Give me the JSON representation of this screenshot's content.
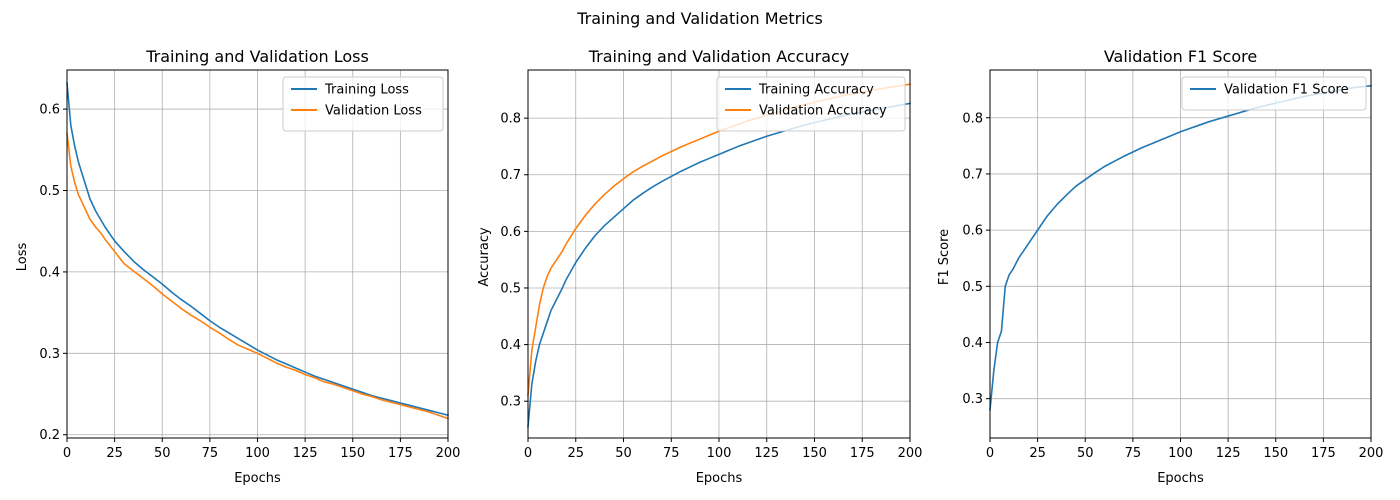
{
  "figure": {
    "suptitle": "Training and Validation Metrics"
  },
  "colors": {
    "training": "#1f77b4",
    "validation": "#ff7f0e"
  },
  "chart_data": [
    {
      "type": "line",
      "title": "Training and Validation Loss",
      "xlabel": "Epochs",
      "ylabel": "Loss",
      "xlim": [
        0,
        200
      ],
      "ylim": [
        0.196,
        0.648
      ],
      "xticks": [
        0,
        25,
        50,
        75,
        100,
        125,
        150,
        175,
        200
      ],
      "yticks": [
        0.2,
        0.3,
        0.4,
        0.5,
        0.6
      ],
      "grid": true,
      "legend": "top-right",
      "series": [
        {
          "name": "Training Loss",
          "color": "#1f77b4",
          "x": [
            0,
            2,
            4,
            6,
            8,
            10,
            12,
            15,
            18,
            20,
            25,
            30,
            35,
            40,
            45,
            50,
            55,
            60,
            65,
            70,
            75,
            80,
            85,
            90,
            95,
            100,
            105,
            110,
            115,
            120,
            125,
            130,
            135,
            140,
            145,
            150,
            155,
            160,
            165,
            170,
            175,
            180,
            185,
            190,
            195,
            200
          ],
          "values": [
            0.632,
            0.58,
            0.555,
            0.535,
            0.52,
            0.505,
            0.49,
            0.475,
            0.463,
            0.455,
            0.438,
            0.425,
            0.413,
            0.403,
            0.394,
            0.385,
            0.375,
            0.366,
            0.358,
            0.349,
            0.34,
            0.332,
            0.325,
            0.318,
            0.311,
            0.304,
            0.298,
            0.292,
            0.287,
            0.282,
            0.277,
            0.272,
            0.268,
            0.264,
            0.26,
            0.256,
            0.252,
            0.248,
            0.245,
            0.242,
            0.239,
            0.236,
            0.233,
            0.23,
            0.227,
            0.224
          ]
        },
        {
          "name": "Validation Loss",
          "color": "#ff7f0e",
          "x": [
            0,
            2,
            4,
            6,
            8,
            10,
            12,
            15,
            18,
            20,
            25,
            30,
            35,
            40,
            45,
            50,
            55,
            60,
            65,
            70,
            75,
            80,
            85,
            90,
            95,
            100,
            105,
            110,
            115,
            120,
            125,
            130,
            135,
            140,
            145,
            150,
            155,
            160,
            165,
            170,
            175,
            180,
            185,
            190,
            195,
            200
          ],
          "values": [
            0.57,
            0.53,
            0.51,
            0.495,
            0.485,
            0.475,
            0.465,
            0.455,
            0.447,
            0.44,
            0.425,
            0.41,
            0.401,
            0.392,
            0.383,
            0.373,
            0.364,
            0.355,
            0.347,
            0.34,
            0.332,
            0.325,
            0.317,
            0.31,
            0.305,
            0.3,
            0.294,
            0.288,
            0.283,
            0.279,
            0.274,
            0.27,
            0.265,
            0.262,
            0.258,
            0.254,
            0.25,
            0.247,
            0.243,
            0.24,
            0.237,
            0.234,
            0.231,
            0.228,
            0.224,
            0.22
          ]
        }
      ]
    },
    {
      "type": "line",
      "title": "Training and Validation Accuracy",
      "xlabel": "Epochs",
      "ylabel": "Accuracy",
      "xlim": [
        0,
        200
      ],
      "ylim": [
        0.235,
        0.885
      ],
      "xticks": [
        0,
        25,
        50,
        75,
        100,
        125,
        150,
        175,
        200
      ],
      "yticks": [
        0.3,
        0.4,
        0.5,
        0.6,
        0.7,
        0.8
      ],
      "grid": true,
      "legend": "top-right",
      "series": [
        {
          "name": "Training Accuracy",
          "color": "#1f77b4",
          "x": [
            0,
            2,
            4,
            6,
            8,
            10,
            12,
            15,
            18,
            20,
            25,
            30,
            35,
            40,
            45,
            50,
            55,
            60,
            65,
            70,
            75,
            80,
            85,
            90,
            95,
            100,
            105,
            110,
            115,
            120,
            125,
            130,
            135,
            140,
            145,
            150,
            155,
            160,
            165,
            170,
            175,
            180,
            185,
            190,
            195,
            200
          ],
          "values": [
            0.255,
            0.33,
            0.37,
            0.4,
            0.42,
            0.44,
            0.46,
            0.48,
            0.5,
            0.515,
            0.545,
            0.57,
            0.592,
            0.61,
            0.625,
            0.64,
            0.655,
            0.667,
            0.678,
            0.688,
            0.697,
            0.706,
            0.714,
            0.722,
            0.729,
            0.736,
            0.743,
            0.75,
            0.756,
            0.762,
            0.768,
            0.773,
            0.778,
            0.783,
            0.788,
            0.792,
            0.796,
            0.8,
            0.804,
            0.808,
            0.811,
            0.814,
            0.817,
            0.82,
            0.823,
            0.826
          ]
        },
        {
          "name": "Validation Accuracy",
          "color": "#ff7f0e",
          "x": [
            0,
            2,
            4,
            6,
            8,
            10,
            12,
            15,
            18,
            20,
            25,
            30,
            35,
            40,
            45,
            50,
            55,
            60,
            65,
            70,
            75,
            80,
            85,
            90,
            95,
            100,
            105,
            110,
            115,
            120,
            125,
            130,
            135,
            140,
            145,
            150,
            155,
            160,
            165,
            170,
            175,
            180,
            185,
            190,
            195,
            200
          ],
          "values": [
            0.31,
            0.39,
            0.43,
            0.47,
            0.5,
            0.52,
            0.535,
            0.55,
            0.565,
            0.578,
            0.605,
            0.628,
            0.648,
            0.665,
            0.68,
            0.693,
            0.705,
            0.715,
            0.724,
            0.733,
            0.741,
            0.749,
            0.756,
            0.763,
            0.77,
            0.777,
            0.783,
            0.789,
            0.795,
            0.8,
            0.805,
            0.81,
            0.815,
            0.82,
            0.824,
            0.828,
            0.832,
            0.836,
            0.84,
            0.843,
            0.846,
            0.849,
            0.852,
            0.855,
            0.857,
            0.86
          ]
        }
      ]
    },
    {
      "type": "line",
      "title": "Validation F1 Score",
      "xlabel": "Epochs",
      "ylabel": "F1 Score",
      "xlim": [
        0,
        200
      ],
      "ylim": [
        0.23,
        0.885
      ],
      "xticks": [
        0,
        25,
        50,
        75,
        100,
        125,
        150,
        175,
        200
      ],
      "yticks": [
        0.3,
        0.4,
        0.5,
        0.6,
        0.7,
        0.8
      ],
      "grid": true,
      "legend": "top-right",
      "series": [
        {
          "name": "Validation F1 Score",
          "color": "#1f77b4",
          "x": [
            0,
            2,
            4,
            6,
            8,
            10,
            12,
            15,
            18,
            20,
            25,
            30,
            35,
            40,
            45,
            50,
            55,
            60,
            65,
            70,
            75,
            80,
            85,
            90,
            95,
            100,
            105,
            110,
            115,
            120,
            125,
            130,
            135,
            140,
            145,
            150,
            155,
            160,
            165,
            170,
            175,
            180,
            185,
            190,
            195,
            200
          ],
          "values": [
            0.28,
            0.35,
            0.4,
            0.42,
            0.5,
            0.52,
            0.53,
            0.55,
            0.565,
            0.575,
            0.6,
            0.625,
            0.645,
            0.662,
            0.678,
            0.69,
            0.702,
            0.713,
            0.722,
            0.731,
            0.739,
            0.747,
            0.754,
            0.761,
            0.768,
            0.775,
            0.781,
            0.787,
            0.793,
            0.798,
            0.803,
            0.808,
            0.813,
            0.818,
            0.822,
            0.826,
            0.83,
            0.834,
            0.838,
            0.841,
            0.844,
            0.847,
            0.85,
            0.853,
            0.855,
            0.857
          ]
        }
      ]
    }
  ]
}
